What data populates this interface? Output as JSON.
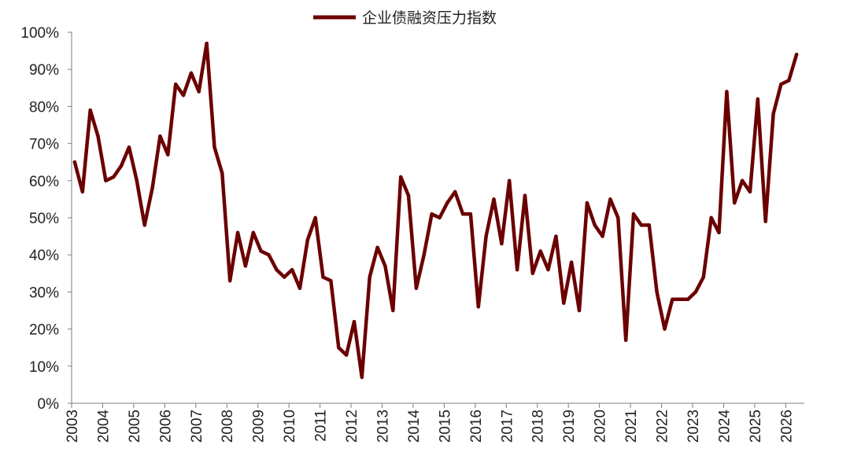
{
  "chart_data": {
    "type": "line",
    "legend": {
      "placement": "top-center"
    },
    "ylim": [
      0,
      100
    ],
    "xlim": [
      2003,
      2026.6
    ],
    "y_ticks": [
      "0%",
      "10%",
      "20%",
      "30%",
      "40%",
      "50%",
      "60%",
      "70%",
      "80%",
      "90%",
      "100%"
    ],
    "x_ticks": [
      "2003",
      "2004",
      "2005",
      "2006",
      "2007",
      "2008",
      "2009",
      "2010",
      "2011",
      "2012",
      "2013",
      "2014",
      "2015",
      "2016",
      "2017",
      "2018",
      "2019",
      "2020",
      "2021",
      "2022",
      "2023",
      "2024",
      "2025",
      "2026"
    ],
    "grid": false,
    "series": [
      {
        "name": "企业债融资压力指数",
        "color": "#6b0000",
        "x": [
          2003.1,
          2003.35,
          2003.6,
          2003.85,
          2004.1,
          2004.35,
          2004.6,
          2004.85,
          2005.1,
          2005.35,
          2005.6,
          2005.85,
          2006.1,
          2006.35,
          2006.6,
          2006.85,
          2007.1,
          2007.35,
          2007.6,
          2007.85,
          2008.1,
          2008.35,
          2008.6,
          2008.85,
          2009.1,
          2009.35,
          2009.6,
          2009.85,
          2010.1,
          2010.35,
          2010.6,
          2010.85,
          2011.1,
          2011.35,
          2011.6,
          2011.85,
          2012.1,
          2012.35,
          2012.6,
          2012.85,
          2013.1,
          2013.35,
          2013.6,
          2013.85,
          2014.1,
          2014.35,
          2014.6,
          2014.85,
          2015.1,
          2015.35,
          2015.6,
          2015.85,
          2016.1,
          2016.35,
          2016.6,
          2016.85,
          2017.1,
          2017.35,
          2017.6,
          2017.85,
          2018.1,
          2018.35,
          2018.6,
          2018.85,
          2019.1,
          2019.35,
          2019.6,
          2019.85,
          2020.1,
          2020.35,
          2020.6,
          2020.85,
          2021.1,
          2021.35,
          2021.6,
          2021.85,
          2022.1,
          2022.35,
          2022.6,
          2022.85,
          2023.1,
          2023.35,
          2023.6,
          2023.85,
          2024.1,
          2024.35,
          2024.6,
          2024.85,
          2025.1,
          2025.35,
          2025.6,
          2025.85,
          2026.1,
          2026.35
        ],
        "y": [
          65,
          57,
          79,
          72,
          60,
          61,
          64,
          69,
          60,
          48,
          58,
          72,
          67,
          86,
          83,
          89,
          84,
          97,
          69,
          62,
          33,
          46,
          37,
          46,
          41,
          40,
          36,
          34,
          36,
          31,
          44,
          50,
          34,
          33,
          15,
          13,
          22,
          7,
          34,
          42,
          37,
          25,
          61,
          56,
          31,
          40,
          51,
          50,
          54,
          57,
          51,
          51,
          26,
          45,
          55,
          43,
          60,
          36,
          56,
          35,
          41,
          36,
          45,
          27,
          38,
          25,
          54,
          48,
          45,
          55,
          50,
          17,
          51,
          48,
          48,
          30,
          20,
          28,
          28,
          28,
          30,
          34,
          50,
          46,
          84,
          54,
          60,
          57,
          82,
          49,
          78,
          86,
          87,
          94
        ]
      }
    ]
  }
}
